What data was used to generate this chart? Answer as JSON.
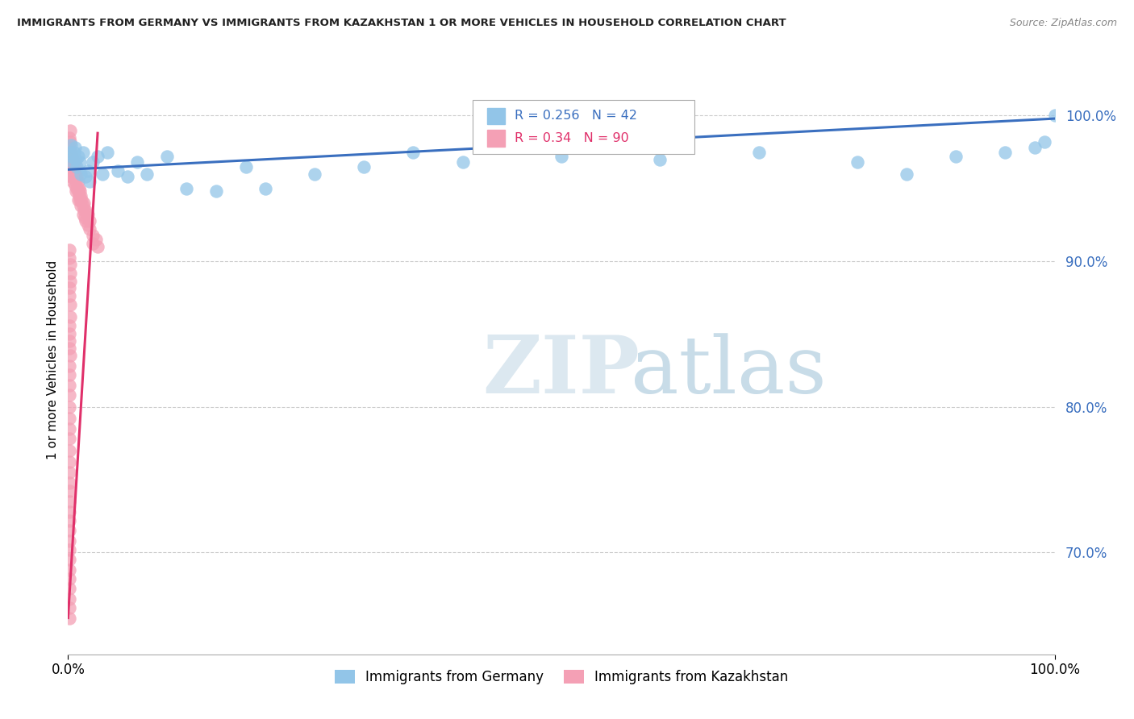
{
  "title": "IMMIGRANTS FROM GERMANY VS IMMIGRANTS FROM KAZAKHSTAN 1 OR MORE VEHICLES IN HOUSEHOLD CORRELATION CHART",
  "source": "Source: ZipAtlas.com",
  "ylabel": "1 or more Vehicles in Household",
  "ytick_vals": [
    0.7,
    0.8,
    0.9,
    1.0
  ],
  "watermark_zip": "ZIP",
  "watermark_atlas": "atlas",
  "legend_germany": "Immigrants from Germany",
  "legend_kazakhstan": "Immigrants from Kazakhstan",
  "R_germany": 0.256,
  "N_germany": 42,
  "R_kazakhstan": 0.34,
  "N_kazakhstan": 90,
  "color_germany": "#92C5E8",
  "color_kazakhstan": "#F4A0B5",
  "trendline_germany": "#3A6FBF",
  "trendline_kazakhstan": "#E0306A",
  "germany_x": [
    0.002,
    0.003,
    0.004,
    0.005,
    0.006,
    0.007,
    0.008,
    0.009,
    0.01,
    0.012,
    0.013,
    0.015,
    0.018,
    0.02,
    0.022,
    0.025,
    0.03,
    0.035,
    0.04,
    0.05,
    0.06,
    0.07,
    0.08,
    0.1,
    0.12,
    0.15,
    0.18,
    0.2,
    0.25,
    0.3,
    0.35,
    0.4,
    0.5,
    0.6,
    0.7,
    0.8,
    0.85,
    0.9,
    0.95,
    0.98,
    0.99,
    1.0
  ],
  "germany_y": [
    0.975,
    0.98,
    0.972,
    0.968,
    0.975,
    0.978,
    0.97,
    0.965,
    0.972,
    0.968,
    0.96,
    0.975,
    0.958,
    0.962,
    0.955,
    0.968,
    0.972,
    0.96,
    0.975,
    0.962,
    0.958,
    0.968,
    0.96,
    0.972,
    0.95,
    0.948,
    0.965,
    0.95,
    0.96,
    0.965,
    0.975,
    0.968,
    0.972,
    0.97,
    0.975,
    0.968,
    0.96,
    0.972,
    0.975,
    0.978,
    0.982,
    1.0
  ],
  "kazakhstan_x": [
    0.001,
    0.001,
    0.002,
    0.002,
    0.002,
    0.003,
    0.003,
    0.003,
    0.003,
    0.004,
    0.004,
    0.004,
    0.005,
    0.005,
    0.005,
    0.006,
    0.006,
    0.007,
    0.007,
    0.007,
    0.008,
    0.008,
    0.008,
    0.009,
    0.009,
    0.01,
    0.01,
    0.01,
    0.011,
    0.011,
    0.012,
    0.012,
    0.013,
    0.013,
    0.014,
    0.015,
    0.015,
    0.016,
    0.016,
    0.017,
    0.018,
    0.018,
    0.02,
    0.02,
    0.022,
    0.022,
    0.025,
    0.025,
    0.028,
    0.03,
    0.001,
    0.001,
    0.002,
    0.002,
    0.002,
    0.001,
    0.001,
    0.002,
    0.002,
    0.001,
    0.001,
    0.001,
    0.001,
    0.002,
    0.001,
    0.001,
    0.001,
    0.001,
    0.001,
    0.001,
    0.001,
    0.001,
    0.001,
    0.001,
    0.001,
    0.001,
    0.001,
    0.001,
    0.001,
    0.001,
    0.001,
    0.001,
    0.001,
    0.001,
    0.001,
    0.001,
    0.001,
    0.001,
    0.001,
    0.001
  ],
  "kazakhstan_y": [
    0.985,
    0.978,
    0.99,
    0.982,
    0.972,
    0.975,
    0.968,
    0.962,
    0.958,
    0.972,
    0.965,
    0.958,
    0.97,
    0.962,
    0.955,
    0.968,
    0.96,
    0.965,
    0.958,
    0.952,
    0.96,
    0.955,
    0.948,
    0.958,
    0.95,
    0.955,
    0.948,
    0.942,
    0.95,
    0.945,
    0.948,
    0.942,
    0.945,
    0.938,
    0.942,
    0.938,
    0.932,
    0.94,
    0.935,
    0.93,
    0.935,
    0.928,
    0.932,
    0.925,
    0.928,
    0.922,
    0.918,
    0.912,
    0.915,
    0.91,
    0.908,
    0.902,
    0.898,
    0.892,
    0.886,
    0.882,
    0.876,
    0.87,
    0.862,
    0.856,
    0.85,
    0.845,
    0.84,
    0.835,
    0.828,
    0.822,
    0.815,
    0.808,
    0.8,
    0.792,
    0.785,
    0.778,
    0.77,
    0.762,
    0.755,
    0.748,
    0.742,
    0.735,
    0.728,
    0.722,
    0.715,
    0.708,
    0.702,
    0.695,
    0.688,
    0.682,
    0.675,
    0.668,
    0.662,
    0.655
  ]
}
